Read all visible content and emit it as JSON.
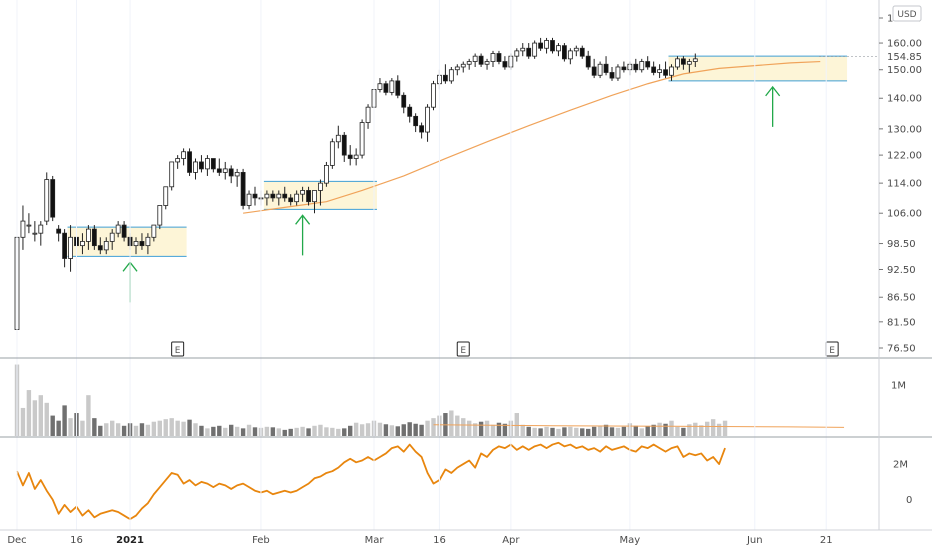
{
  "currency_badge": "USD",
  "last_price_label": "154.85",
  "earnings_marker": "E",
  "chart_data": [
    {
      "type": "candlestick",
      "name": "price",
      "yscale": "log",
      "ylim": [
        76.5,
        170
      ],
      "y_ticks": [
        {
          "v": 170,
          "label": "170.00"
        },
        {
          "v": 160,
          "label": "160.00"
        },
        {
          "v": 150,
          "label": "150.00"
        },
        {
          "v": 140,
          "label": "140.00"
        },
        {
          "v": 130,
          "label": "130.00"
        },
        {
          "v": 122,
          "label": "122.00"
        },
        {
          "v": 114,
          "label": "114.00"
        },
        {
          "v": 106,
          "label": "106.00"
        },
        {
          "v": 98.5,
          "label": "98.50"
        },
        {
          "v": 92.5,
          "label": "92.50"
        },
        {
          "v": 86.5,
          "label": "86.50"
        },
        {
          "v": 81.5,
          "label": "81.50"
        },
        {
          "v": 76.5,
          "label": "76.50"
        }
      ],
      "last_price": 154.85,
      "x_ticks": [
        {
          "d": 0,
          "label": "Dec",
          "bold": false
        },
        {
          "d": 10,
          "label": "16",
          "bold": false
        },
        {
          "d": 19,
          "label": "2021",
          "bold": true
        },
        {
          "d": 41,
          "label": "Feb",
          "bold": false
        },
        {
          "d": 60,
          "label": "Mar",
          "bold": false
        },
        {
          "d": 71,
          "label": "16",
          "bold": false
        },
        {
          "d": 83,
          "label": "Apr",
          "bold": false
        },
        {
          "d": 103,
          "label": "May",
          "bold": false
        },
        {
          "d": 124,
          "label": "Jun",
          "bold": false
        },
        {
          "d": 136,
          "label": "21",
          "bold": false
        }
      ],
      "earnings_days": [
        27,
        75,
        137
      ],
      "consolidation_zones": [
        {
          "d0": 9,
          "d1": 28,
          "top": 102.5,
          "bottom": 95.5,
          "arrow_day": 19
        },
        {
          "d0": 42,
          "d1": 60,
          "top": 114.5,
          "bottom": 107,
          "arrow_day": 48
        },
        {
          "d0": 110,
          "d1": 139,
          "top": 155,
          "bottom": 146,
          "arrow_day": 127
        }
      ],
      "ohlc": [
        [
          80,
          101,
          79,
          100
        ],
        [
          100,
          108,
          97,
          104
        ],
        [
          103,
          106,
          101,
          103
        ],
        [
          101,
          104,
          99,
          101
        ],
        [
          101,
          104,
          98,
          103
        ],
        [
          104,
          117,
          103,
          115
        ],
        [
          115,
          116,
          104,
          105
        ],
        [
          102,
          103,
          99,
          101
        ],
        [
          101,
          102,
          93,
          95
        ],
        [
          95,
          103,
          92,
          100
        ],
        [
          100,
          102,
          96,
          98
        ],
        [
          98,
          101,
          96,
          99
        ],
        [
          99,
          103,
          97,
          102
        ],
        [
          102,
          103,
          97,
          98
        ],
        [
          98,
          100,
          96,
          97
        ],
        [
          97,
          100,
          96,
          99
        ],
        [
          99,
          102,
          97,
          101
        ],
        [
          101,
          104,
          100,
          103
        ],
        [
          103,
          104,
          99,
          100
        ],
        [
          100,
          101,
          97,
          98
        ],
        [
          98,
          100,
          96,
          99
        ],
        [
          99,
          101,
          97,
          98
        ],
        [
          98,
          101,
          96,
          100
        ],
        [
          100,
          103,
          99,
          103
        ],
        [
          103,
          108,
          102,
          108
        ],
        [
          108,
          113,
          107,
          113
        ],
        [
          113,
          120,
          112,
          120
        ],
        [
          120,
          122,
          118,
          121
        ],
        [
          121,
          124,
          119,
          123
        ],
        [
          123,
          124,
          116,
          117
        ],
        [
          117,
          121,
          115,
          120
        ],
        [
          120,
          122,
          117,
          118
        ],
        [
          118,
          122,
          116,
          121
        ],
        [
          121,
          121,
          117,
          118
        ],
        [
          118,
          121,
          116,
          117
        ],
        [
          117,
          120,
          115,
          118
        ],
        [
          118,
          119,
          114,
          116
        ],
        [
          116,
          118,
          113,
          117
        ],
        [
          117,
          118,
          107,
          108
        ],
        [
          108,
          112,
          107,
          111
        ],
        [
          111,
          113,
          108,
          110
        ],
        [
          110,
          112,
          108,
          110
        ],
        [
          110,
          112,
          108,
          111
        ],
        [
          111,
          112,
          109,
          110
        ],
        [
          110,
          112,
          108,
          111
        ],
        [
          111,
          113,
          109,
          110
        ],
        [
          110,
          111,
          108,
          109
        ],
        [
          109,
          112,
          108,
          111
        ],
        [
          111,
          113,
          109,
          112
        ],
        [
          112,
          113,
          108,
          109
        ],
        [
          109,
          112,
          106,
          112
        ],
        [
          112,
          115,
          108,
          114
        ],
        [
          114,
          120,
          113,
          119
        ],
        [
          119,
          127,
          118,
          126
        ],
        [
          126,
          131,
          124,
          128
        ],
        [
          128,
          129,
          120,
          122
        ],
        [
          122,
          125,
          119,
          121
        ],
        [
          121,
          124,
          119,
          122
        ],
        [
          122,
          133,
          121,
          132
        ],
        [
          132,
          138,
          130,
          137
        ],
        [
          137,
          144,
          135,
          143
        ],
        [
          143,
          147,
          142,
          145
        ],
        [
          145,
          146,
          141,
          142
        ],
        [
          142,
          147,
          141,
          146
        ],
        [
          146,
          148,
          140,
          141
        ],
        [
          141,
          142,
          135,
          137
        ],
        [
          137,
          138,
          132,
          134
        ],
        [
          134,
          135,
          129,
          131
        ],
        [
          131,
          132,
          127,
          129
        ],
        [
          129,
          138,
          126,
          137
        ],
        [
          137,
          146,
          136,
          145
        ],
        [
          145,
          150,
          143,
          148
        ],
        [
          148,
          152,
          145,
          146
        ],
        [
          146,
          151,
          145,
          150
        ],
        [
          150,
          152,
          148,
          151
        ],
        [
          151,
          153,
          149,
          152
        ],
        [
          152,
          154,
          150,
          153
        ],
        [
          153,
          156,
          151,
          155
        ],
        [
          155,
          156,
          151,
          152
        ],
        [
          152,
          154,
          150,
          153
        ],
        [
          153,
          157,
          151,
          156
        ],
        [
          156,
          157,
          152,
          153
        ],
        [
          153,
          155,
          150,
          151
        ],
        [
          151,
          156,
          150,
          155
        ],
        [
          155,
          158,
          153,
          157
        ],
        [
          157,
          160,
          155,
          158
        ],
        [
          158,
          160,
          154,
          155
        ],
        [
          155,
          161,
          154,
          160
        ],
        [
          160,
          162,
          157,
          158
        ],
        [
          158,
          162,
          156,
          161
        ],
        [
          161,
          162,
          156,
          157
        ],
        [
          157,
          160,
          155,
          159
        ],
        [
          159,
          160,
          153,
          154
        ],
        [
          154,
          158,
          152,
          157
        ],
        [
          157,
          159,
          155,
          158
        ],
        [
          158,
          159,
          154,
          155
        ],
        [
          155,
          157,
          150,
          151
        ],
        [
          151,
          154,
          147,
          148
        ],
        [
          148,
          153,
          147,
          152
        ],
        [
          152,
          155,
          148,
          149
        ],
        [
          149,
          151,
          146,
          147
        ],
        [
          147,
          152,
          146,
          151
        ],
        [
          151,
          153,
          149,
          150
        ],
        [
          150,
          153,
          148,
          152
        ],
        [
          152,
          154,
          149,
          150
        ],
        [
          150,
          154,
          149,
          153
        ],
        [
          153,
          155,
          150,
          151
        ],
        [
          151,
          153,
          148,
          149
        ],
        [
          149,
          152,
          147,
          150
        ],
        [
          150,
          153,
          147,
          148
        ],
        [
          148,
          152,
          146,
          151
        ],
        [
          151,
          155,
          150,
          154
        ],
        [
          154,
          155,
          150,
          152
        ],
        [
          152,
          154,
          149,
          153
        ],
        [
          153,
          156,
          151,
          154
        ]
      ],
      "ma": [
        [
          38,
          106
        ],
        [
          45,
          107.5
        ],
        [
          52,
          109
        ],
        [
          58,
          112
        ],
        [
          65,
          116
        ],
        [
          72,
          121
        ],
        [
          79,
          126
        ],
        [
          86,
          131
        ],
        [
          93,
          136
        ],
        [
          100,
          141
        ],
        [
          106,
          145
        ],
        [
          112,
          148.5
        ],
        [
          118,
          150.5
        ],
        [
          124,
          151.5
        ],
        [
          130,
          152.5
        ],
        [
          135,
          153
        ]
      ]
    },
    {
      "type": "bar",
      "name": "volume",
      "y_ticks": [
        {
          "v": 1000000,
          "label": "1M"
        }
      ],
      "ylim": [
        0,
        1450000
      ],
      "values": [
        1400000,
        550000,
        900000,
        700000,
        800000,
        650000,
        400000,
        300000,
        600000,
        350000,
        450000,
        300000,
        800000,
        350000,
        200000,
        250000,
        300000,
        250000,
        200000,
        250000,
        200000,
        250000,
        220000,
        280000,
        300000,
        330000,
        350000,
        300000,
        280000,
        320000,
        250000,
        200000,
        150000,
        180000,
        200000,
        160000,
        220000,
        180000,
        150000,
        220000,
        170000,
        160000,
        180000,
        170000,
        150000,
        120000,
        140000,
        160000,
        180000,
        150000,
        200000,
        220000,
        170000,
        160000,
        140000,
        150000,
        200000,
        260000,
        230000,
        250000,
        300000,
        260000,
        230000,
        210000,
        190000,
        230000,
        270000,
        240000,
        220000,
        300000,
        350000,
        400000,
        450000,
        500000,
        400000,
        350000,
        300000,
        250000,
        280000,
        300000,
        220000,
        260000,
        240000,
        300000,
        450000,
        220000,
        180000,
        160000,
        150000,
        180000,
        160000,
        140000,
        170000,
        180000,
        160000,
        150000,
        140000,
        180000,
        200000,
        220000,
        170000,
        160000,
        180000,
        250000,
        200000,
        150000,
        190000,
        220000,
        260000,
        240000,
        300000,
        180000,
        160000,
        230000,
        260000,
        210000,
        280000,
        330000,
        240000,
        300000
      ],
      "ma": [
        [
          70,
          220000
        ],
        [
          90,
          200000
        ],
        [
          110,
          190000
        ],
        [
          130,
          180000
        ],
        [
          139,
          170000
        ]
      ]
    },
    {
      "type": "line",
      "name": "indicator",
      "y_ticks": [
        {
          "v": 2000000,
          "label": "2M"
        },
        {
          "v": 0,
          "label": "0"
        }
      ],
      "ylim": [
        -1600000,
        3300000
      ],
      "values": [
        1600000,
        800000,
        1500000,
        600000,
        1100000,
        500000,
        0,
        -800000,
        -300000,
        -700000,
        -400000,
        -900000,
        -600000,
        -1000000,
        -800000,
        -700000,
        -600000,
        -700000,
        -900000,
        -1100000,
        -900000,
        -500000,
        -200000,
        300000,
        700000,
        1100000,
        1500000,
        1400000,
        900000,
        1100000,
        800000,
        1000000,
        900000,
        700000,
        900000,
        800000,
        600000,
        800000,
        900000,
        700000,
        500000,
        400000,
        500000,
        300000,
        400000,
        500000,
        400000,
        500000,
        700000,
        900000,
        1200000,
        1300000,
        1500000,
        1600000,
        1800000,
        2100000,
        2300000,
        2100000,
        2200000,
        2400000,
        2200000,
        2400000,
        2600000,
        2900000,
        3000000,
        2700000,
        3100000,
        2700000,
        2400000,
        1500000,
        900000,
        1100000,
        1700000,
        1500000,
        1800000,
        2000000,
        2200000,
        1800000,
        2600000,
        2400000,
        2800000,
        3000000,
        2900000,
        3100000,
        2800000,
        3000000,
        2800000,
        3000000,
        3100000,
        2900000,
        3100000,
        3200000,
        3000000,
        3100000,
        2900000,
        3000000,
        2800000,
        2900000,
        2700000,
        3000000,
        2800000,
        2900000,
        3000000,
        2800000,
        2700000,
        3000000,
        2900000,
        3100000,
        2900000,
        2700000,
        2900000,
        3000000,
        2400000,
        2600000,
        2500000,
        2600000,
        2200000,
        2400000,
        2000000,
        2900000
      ]
    }
  ]
}
